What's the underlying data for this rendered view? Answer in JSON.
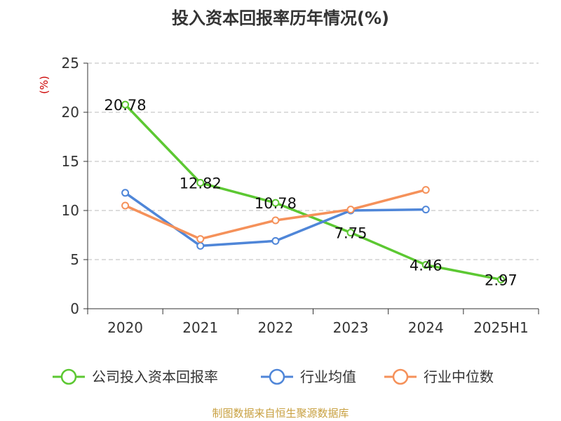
{
  "title": "投入资本回报率历年情况(%)",
  "source": "制图数据来自恒生聚源数据库",
  "chart_data": {
    "type": "line",
    "categories": [
      "2020",
      "2021",
      "2022",
      "2023",
      "2024",
      "2025H1"
    ],
    "ylabel": "(%)",
    "ylim": [
      0,
      25
    ],
    "yticks": [
      0,
      5,
      10,
      15,
      20,
      25
    ],
    "grid": true,
    "legend_position": "bottom",
    "series": [
      {
        "name": "公司投入资本回报率",
        "color": "#5cc832",
        "values": [
          20.78,
          12.82,
          10.78,
          7.75,
          4.46,
          2.97
        ],
        "data_labels": [
          "20.78",
          "12.82",
          "10.78",
          "7.75",
          "4.46",
          "2.97"
        ]
      },
      {
        "name": "行业均值",
        "color": "#4f86d8",
        "values": [
          11.8,
          6.4,
          6.9,
          10.0,
          10.1,
          null
        ]
      },
      {
        "name": "行业中位数",
        "color": "#f5915a",
        "values": [
          10.5,
          7.1,
          9.0,
          10.1,
          12.1,
          null
        ]
      }
    ]
  }
}
